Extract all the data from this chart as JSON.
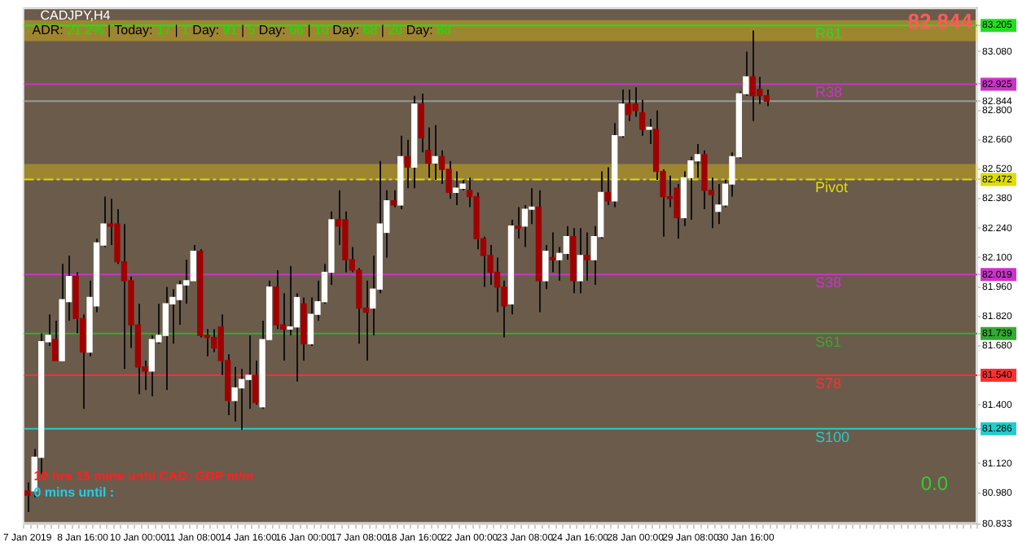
{
  "chart_data": {
    "type": "candlestick",
    "title": "CADJPY,H4",
    "subtitle": "ADR: 21.2% | Today: 17 | 1 Day: 91 | 5 Day: 66 | 10 Day: 68 | 20 Day: 88",
    "categories": [
      "7 Jan 2019",
      null,
      null,
      null,
      null,
      null,
      null,
      null,
      "8 Jan 16:00",
      null,
      null,
      null,
      null,
      null,
      null,
      null,
      "10 Jan 00:00",
      null,
      null,
      null,
      null,
      null,
      null,
      null,
      "11 Jan 08:00",
      null,
      null,
      null,
      null,
      null,
      null,
      null,
      "14 Jan 16:00",
      null,
      null,
      null,
      null,
      null,
      null,
      null,
      "16 Jan 00:00",
      null,
      null,
      null,
      null,
      null,
      null,
      null,
      "17 Jan 08:00",
      null,
      null,
      null,
      null,
      null,
      null,
      null,
      "18 Jan 16:00",
      null,
      null,
      null,
      null,
      null,
      null,
      null,
      "22 Jan 00:00",
      null,
      null,
      null,
      null,
      null,
      null,
      null,
      "23 Jan 08:00",
      null,
      null,
      null,
      null,
      null,
      null,
      null,
      "24 Jan 16:00",
      null,
      null,
      null,
      null,
      null,
      null,
      null,
      "28 Jan 00:00",
      null,
      null,
      null,
      null,
      null,
      null,
      null,
      "29 Jan 08:00",
      null,
      null,
      null,
      null,
      null,
      null,
      null,
      "30 Jan 16:00",
      null,
      null,
      null,
      null,
      null,
      null,
      null,
      null,
      null,
      null,
      null,
      null,
      null,
      null,
      null,
      null,
      null,
      null,
      null,
      null,
      null,
      null,
      null,
      null,
      null,
      null,
      null,
      null,
      null,
      null,
      null,
      null,
      null
    ],
    "ohlc": [
      [
        80.99,
        81.03,
        80.89,
        80.97
      ],
      [
        80.99,
        81.19,
        80.96,
        81.15
      ],
      [
        81.15,
        81.74,
        81.07,
        81.7
      ],
      [
        81.7,
        81.83,
        81.68,
        81.73
      ],
      [
        81.71,
        81.8,
        81.61,
        81.61
      ],
      [
        81.61,
        82.07,
        81.61,
        81.9
      ],
      [
        81.89,
        82.11,
        81.8,
        82.01
      ],
      [
        82.01,
        82.03,
        81.74,
        81.81
      ],
      [
        81.81,
        81.83,
        81.38,
        81.65
      ],
      [
        81.65,
        81.99,
        81.63,
        81.91
      ],
      [
        81.87,
        82.19,
        81.84,
        82.17
      ],
      [
        82.16,
        82.39,
        82.15,
        82.26
      ],
      [
        82.26,
        82.38,
        82.16,
        82.25
      ],
      [
        82.26,
        82.33,
        82.07,
        82.08
      ],
      [
        82.08,
        82.26,
        81.57,
        81.99
      ],
      [
        81.99,
        82.01,
        81.67,
        81.78
      ],
      [
        81.78,
        81.88,
        81.45,
        81.58
      ],
      [
        81.58,
        81.61,
        81.47,
        81.56
      ],
      [
        81.56,
        81.73,
        81.44,
        81.71
      ],
      [
        81.7,
        81.88,
        81.69,
        81.73
      ],
      [
        81.73,
        81.96,
        81.47,
        81.88
      ],
      [
        81.88,
        81.95,
        81.69,
        81.91
      ],
      [
        81.9,
        81.99,
        81.78,
        81.97
      ],
      [
        81.97,
        82.09,
        81.88,
        81.99
      ],
      [
        81.99,
        82.16,
        81.99,
        82.13
      ],
      [
        82.13,
        82.14,
        81.72,
        81.73
      ],
      [
        81.73,
        81.76,
        81.63,
        81.72
      ],
      [
        81.72,
        81.76,
        81.65,
        81.67
      ],
      [
        81.77,
        81.83,
        81.54,
        81.61
      ],
      [
        81.61,
        81.64,
        81.35,
        81.42
      ],
      [
        81.42,
        81.58,
        81.32,
        81.48
      ],
      [
        81.48,
        81.57,
        81.28,
        81.52
      ],
      [
        81.52,
        81.73,
        81.38,
        81.54
      ],
      [
        81.54,
        81.61,
        81.4,
        81.41
      ],
      [
        81.39,
        81.8,
        81.38,
        81.71
      ],
      [
        81.71,
        81.99,
        81.71,
        81.96
      ],
      [
        81.96,
        82.04,
        81.76,
        81.78
      ],
      [
        81.78,
        81.93,
        81.61,
        81.76
      ],
      [
        81.76,
        82.06,
        81.73,
        81.77
      ],
      [
        81.77,
        81.93,
        81.51,
        81.91
      ],
      [
        81.88,
        81.91,
        81.61,
        81.69
      ],
      [
        81.69,
        81.91,
        81.68,
        81.83
      ],
      [
        81.83,
        81.99,
        81.8,
        81.89
      ],
      [
        81.89,
        82.07,
        81.88,
        82.03
      ],
      [
        82.03,
        82.32,
        81.97,
        82.28
      ],
      [
        82.28,
        82.42,
        82.16,
        82.25
      ],
      [
        82.28,
        82.32,
        82.03,
        82.09
      ],
      [
        82.09,
        82.15,
        82.03,
        82.04
      ],
      [
        82.04,
        82.05,
        81.69,
        81.86
      ],
      [
        81.86,
        81.99,
        81.61,
        81.84
      ],
      [
        81.86,
        82.11,
        81.73,
        81.95
      ],
      [
        81.95,
        82.56,
        81.93,
        82.26
      ],
      [
        82.22,
        82.42,
        82.1,
        82.37
      ],
      [
        82.37,
        82.42,
        82.34,
        82.35
      ],
      [
        82.35,
        82.68,
        82.33,
        82.58
      ],
      [
        82.58,
        82.66,
        82.43,
        82.53
      ],
      [
        82.53,
        82.87,
        82.43,
        82.83
      ],
      [
        82.83,
        82.88,
        82.6,
        82.67
      ],
      [
        82.61,
        82.72,
        82.48,
        82.55
      ],
      [
        82.55,
        82.73,
        82.47,
        82.58
      ],
      [
        82.58,
        82.61,
        82.45,
        82.52
      ],
      [
        82.52,
        82.56,
        82.38,
        82.41
      ],
      [
        82.41,
        82.51,
        82.35,
        82.43
      ],
      [
        82.43,
        82.47,
        82.42,
        82.45
      ],
      [
        82.42,
        82.48,
        82.34,
        82.39
      ],
      [
        82.39,
        82.41,
        82.14,
        82.19
      ],
      [
        82.19,
        82.2,
        81.96,
        82.11
      ],
      [
        82.11,
        82.16,
        81.97,
        82.03
      ],
      [
        82.03,
        82.1,
        81.84,
        81.96
      ],
      [
        81.96,
        81.99,
        81.72,
        81.87
      ],
      [
        81.88,
        82.28,
        81.83,
        82.25
      ],
      [
        82.25,
        82.34,
        82.19,
        82.24
      ],
      [
        82.25,
        82.35,
        82.15,
        82.33
      ],
      [
        82.33,
        82.43,
        82.26,
        82.34
      ],
      [
        82.34,
        82.42,
        81.84,
        81.99
      ],
      [
        81.99,
        82.16,
        81.95,
        82.13
      ],
      [
        82.1,
        82.22,
        82.03,
        82.09
      ],
      [
        82.09,
        82.15,
        81.99,
        82.12
      ],
      [
        82.12,
        82.25,
        82.09,
        82.2
      ],
      [
        82.2,
        82.24,
        81.93,
        81.99
      ],
      [
        81.99,
        82.24,
        81.93,
        82.11
      ],
      [
        82.11,
        82.22,
        81.99,
        82.09
      ],
      [
        82.09,
        82.25,
        81.97,
        82.2
      ],
      [
        82.2,
        82.51,
        82.19,
        82.41
      ],
      [
        82.41,
        82.53,
        82.35,
        82.37
      ],
      [
        82.37,
        82.74,
        82.34,
        82.68
      ],
      [
        82.68,
        82.9,
        82.67,
        82.83
      ],
      [
        82.83,
        82.9,
        82.75,
        82.78
      ],
      [
        82.83,
        82.91,
        82.77,
        82.8
      ],
      [
        82.79,
        82.85,
        82.68,
        82.71
      ],
      [
        82.71,
        82.76,
        82.64,
        82.72
      ],
      [
        82.71,
        82.8,
        82.47,
        82.51
      ],
      [
        82.51,
        82.52,
        82.2,
        82.39
      ],
      [
        82.39,
        82.49,
        82.34,
        82.38
      ],
      [
        82.43,
        82.45,
        82.19,
        82.29
      ],
      [
        82.29,
        82.51,
        82.25,
        82.48
      ],
      [
        82.48,
        82.58,
        82.28,
        82.56
      ],
      [
        82.56,
        82.64,
        82.48,
        82.59
      ],
      [
        82.59,
        82.61,
        82.33,
        82.42
      ],
      [
        82.42,
        82.48,
        82.24,
        82.4
      ],
      [
        82.32,
        82.45,
        82.26,
        82.35
      ],
      [
        82.35,
        82.47,
        82.34,
        82.45
      ],
      [
        82.45,
        82.6,
        82.39,
        82.58
      ],
      [
        82.58,
        82.89,
        82.57,
        82.88
      ],
      [
        82.88,
        83.08,
        82.87,
        82.96
      ],
      [
        82.96,
        83.18,
        82.75,
        82.87
      ],
      [
        82.9,
        82.96,
        82.83,
        82.87
      ],
      [
        82.87,
        82.9,
        82.82,
        82.844
      ],
      null,
      null,
      null,
      null,
      null,
      null,
      null,
      null,
      null,
      null,
      null,
      null,
      null,
      null,
      null,
      null,
      null,
      null,
      null,
      null,
      null,
      null,
      null,
      null,
      null,
      null,
      null,
      null,
      null,
      null
    ],
    "colors": [
      "#a00000",
      "#ffffff",
      "#ffffff",
      "#ffffff",
      "#a00000",
      "#ffffff",
      "#ffffff",
      "#a00000",
      "#a00000",
      "#ffffff",
      "#ffffff",
      "#ffffff",
      "#a00000",
      "#a00000",
      "#a00000",
      "#a00000",
      "#a00000",
      "#a00000",
      "#ffffff",
      "#ffffff",
      "#ffffff",
      "#ffffff",
      "#ffffff",
      "#ffffff",
      "#ffffff",
      "#a00000",
      "#a00000",
      "#a00000",
      "#a00000",
      "#a00000",
      "#ffffff",
      "#ffffff",
      "#ffffff",
      "#a00000",
      "#ffffff",
      "#ffffff",
      "#a00000",
      "#a00000",
      "#ffffff",
      "#ffffff",
      "#a00000",
      "#ffffff",
      "#ffffff",
      "#ffffff",
      "#ffffff",
      "#a00000",
      "#a00000",
      "#a00000",
      "#a00000",
      "#a00000",
      "#ffffff",
      "#ffffff",
      "#ffffff",
      "#a00000",
      "#ffffff",
      "#a00000",
      "#ffffff",
      "#a00000",
      "#a00000",
      "#ffffff",
      "#a00000",
      "#a00000",
      "#ffffff",
      "#ffffff",
      "#a00000",
      "#a00000",
      "#a00000",
      "#a00000",
      "#a00000",
      "#a00000",
      "#ffffff",
      "#a00000",
      "#ffffff",
      "#ffffff",
      "#a00000",
      "#ffffff",
      "#a00000",
      "#ffffff",
      "#ffffff",
      "#a00000",
      "#ffffff",
      "#a00000",
      "#ffffff",
      "#ffffff",
      "#a00000",
      "#ffffff",
      "#ffffff",
      "#a00000",
      "#a00000",
      "#a00000",
      "#ffffff",
      "#a00000",
      "#a00000",
      "#a00000",
      "#a00000",
      "#ffffff",
      "#ffffff",
      "#ffffff",
      "#a00000",
      "#a00000",
      "#ffffff",
      "#ffffff",
      "#ffffff",
      "#ffffff",
      "#ffffff",
      "#a00000",
      "#a00000",
      "#a00000",
      null,
      null,
      null,
      null,
      null,
      null,
      null,
      null,
      null,
      null,
      null,
      null,
      null,
      null,
      null,
      null,
      null,
      null,
      null,
      null,
      null,
      null,
      null,
      null,
      null,
      null,
      null,
      null,
      null,
      null
    ],
    "ylim": [
      80.833,
      83.29
    ],
    "yticks": [
      {
        "value": 80.833,
        "label": "80.833"
      },
      {
        "value": 80.98,
        "label": "80.980"
      },
      {
        "value": 81.12,
        "label": "81.120"
      },
      {
        "value": 81.4,
        "label": "81.400"
      },
      {
        "value": 81.68,
        "label": "81.680"
      },
      {
        "value": 81.82,
        "label": "81.820"
      },
      {
        "value": 81.96,
        "label": "81.960"
      },
      {
        "value": 82.1,
        "label": "82.100"
      },
      {
        "value": 82.24,
        "label": "82.240"
      },
      {
        "value": 82.38,
        "label": "82.380"
      },
      {
        "value": 82.52,
        "label": "82.520"
      },
      {
        "value": 82.66,
        "label": "82.660"
      },
      {
        "value": 82.8,
        "label": "82.800"
      },
      {
        "value": 83.08,
        "label": "83.080"
      },
      {
        "value": 83.205,
        "label": "83.205"
      },
      {
        "value": 82.925,
        "label": "82.925"
      },
      {
        "value": 82.844,
        "label": "82.844"
      },
      {
        "value": 82.472,
        "label": "82.472"
      },
      {
        "value": 82.019,
        "label": "82.019"
      },
      {
        "value": 81.739,
        "label": "81.739"
      },
      {
        "value": 81.54,
        "label": "81.540"
      },
      {
        "value": 81.286,
        "label": "81.286"
      }
    ],
    "ref_lines": [
      {
        "axis": "y",
        "value": 83.205,
        "label": "R61",
        "color": "#22dd22"
      },
      {
        "axis": "y",
        "value": 82.925,
        "label": "R38",
        "color": "#cc33cc"
      },
      {
        "axis": "y",
        "value": 82.844,
        "label": null,
        "color": "#9a9a9a"
      },
      {
        "axis": "y",
        "value": 82.472,
        "label": "Pivot",
        "color": "#dddd00",
        "line_style": "dashed"
      },
      {
        "axis": "y",
        "value": 82.019,
        "label": "S38",
        "color": "#cc33cc"
      },
      {
        "axis": "y",
        "value": 81.739,
        "label": "S61",
        "color": "#33aa33"
      },
      {
        "axis": "y",
        "value": 81.54,
        "label": "S78",
        "color": "#ff3030"
      },
      {
        "axis": "y",
        "value": 81.286,
        "label": "S100",
        "color": "#22cccc"
      }
    ],
    "bands": [
      {
        "axis": "y",
        "from": 83.13,
        "to": 83.23,
        "color": "#ffd700"
      },
      {
        "axis": "y",
        "from": 82.47,
        "to": 82.545,
        "color": "#ffd700"
      }
    ],
    "annotations": [
      "82.844",
      "10 hrs 15 mins until CAD: GDP m/m",
      "0 mins until :",
      "0.0"
    ]
  }
}
